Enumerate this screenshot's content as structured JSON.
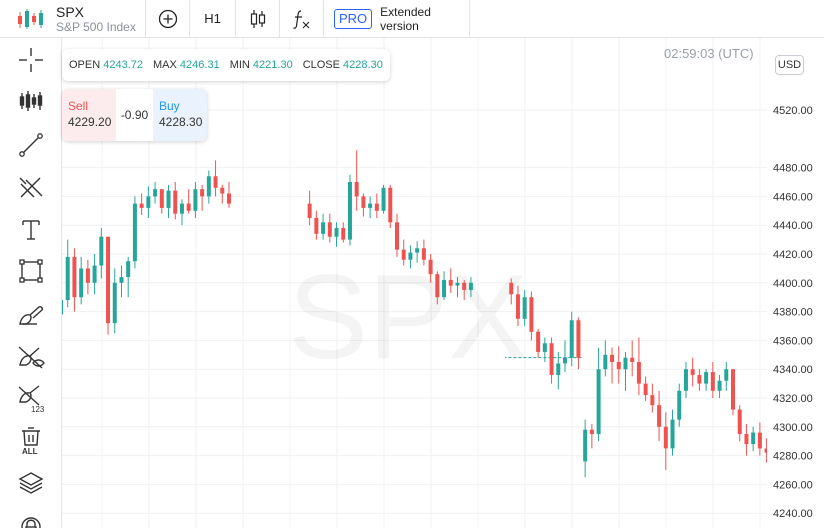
{
  "header": {
    "symbol": "SPX",
    "description": "S&P 500 Index",
    "interval": "H1",
    "pro_badge": "PRO",
    "extended_label": "Extended version"
  },
  "icons": {
    "logo": "candles-logo-icon",
    "add": "plus-circle-icon",
    "chart_type": "candlestick-icon",
    "indicators": "fx-icon"
  },
  "left_toolbar": [
    "crosshair-icon",
    "candles-settings-icon",
    "trend-line-icon",
    "fork-lines-icon",
    "text-icon",
    "rectangle-icon",
    "brush-icon",
    "hide-drawings-icon",
    "hide-123-icon",
    "delete-all-icon",
    "layers-icon",
    "lock-icon"
  ],
  "left_toolbar_labels": {
    "delete_all": "ALL",
    "hide_123": "123"
  },
  "ohlc": {
    "open_label": "OPEN",
    "open": "4243.72",
    "max_label": "MAX",
    "max": "4246.31",
    "min_label": "MIN",
    "min": "4221.30",
    "close_label": "CLOSE",
    "close": "4228.30"
  },
  "trade": {
    "sell_label": "Sell",
    "sell": "4229.20",
    "spread": "-0.90",
    "buy_label": "Buy",
    "buy": "4228.30"
  },
  "clock": "02:59:03 (UTC)",
  "currency": "USD",
  "watermark": "SPX",
  "colors": {
    "up": "#26a69a",
    "down": "#ef5350",
    "grid": "#eef0f3"
  },
  "chart_data": {
    "type": "candlestick",
    "title": "",
    "y_ticks": [
      4520,
      4480,
      4460,
      4440,
      4420,
      4400,
      4380,
      4360,
      4340,
      4320,
      4300,
      4280,
      4260,
      4240
    ],
    "ylim": [
      4232,
      4550
    ],
    "grid": true,
    "last_price_line": 4348,
    "gap_slots": [
      26,
      27,
      28,
      29,
      30,
      31,
      32,
      33,
      34,
      35,
      36
    ],
    "candles": [
      [
        4378,
        4395,
        4374,
        4388
      ],
      [
        4388,
        4430,
        4383,
        4418
      ],
      [
        4418,
        4424,
        4380,
        4390
      ],
      [
        4390,
        4418,
        4385,
        4410
      ],
      [
        4410,
        4416,
        4392,
        4400
      ],
      [
        4400,
        4420,
        4392,
        4412
      ],
      [
        4412,
        4438,
        4403,
        4432
      ],
      [
        4432,
        4432,
        4364,
        4372
      ],
      [
        4372,
        4410,
        4365,
        4400
      ],
      [
        4400,
        4412,
        4390,
        4404
      ],
      [
        4404,
        4418,
        4390,
        4415
      ],
      [
        4415,
        4460,
        4410,
        4455
      ],
      [
        4455,
        4462,
        4447,
        4452
      ],
      [
        4452,
        4467,
        4445,
        4460
      ],
      [
        4460,
        4470,
        4455,
        4465
      ],
      [
        4465,
        4465,
        4448,
        4452
      ],
      [
        4452,
        4468,
        4445,
        4464
      ],
      [
        4464,
        4470,
        4444,
        4448
      ],
      [
        4448,
        4458,
        4440,
        4455
      ],
      [
        4455,
        4465,
        4448,
        4450
      ],
      [
        4450,
        4470,
        4445,
        4465
      ],
      [
        4465,
        4468,
        4450,
        4460
      ],
      [
        4460,
        4478,
        4455,
        4474
      ],
      [
        4474,
        4485,
        4460,
        4466
      ],
      [
        4466,
        4468,
        4455,
        4462
      ],
      [
        4462,
        4470,
        4452,
        4455
      ],
      [
        4455,
        4464,
        4440,
        4445
      ],
      [
        4445,
        4450,
        4430,
        4434
      ],
      [
        4434,
        4448,
        4430,
        4442
      ],
      [
        4442,
        4448,
        4428,
        4432
      ],
      [
        4432,
        4442,
        4425,
        4438
      ],
      [
        4438,
        4442,
        4428,
        4430
      ],
      [
        4430,
        4475,
        4426,
        4470
      ],
      [
        4470,
        4492,
        4450,
        4460
      ],
      [
        4460,
        4462,
        4446,
        4452
      ],
      [
        4452,
        4460,
        4445,
        4455
      ],
      [
        4455,
        4462,
        4445,
        4450
      ],
      [
        4450,
        4468,
        4448,
        4466
      ],
      [
        4466,
        4468,
        4438,
        4442
      ],
      [
        4442,
        4448,
        4418,
        4423
      ],
      [
        4423,
        4430,
        4412,
        4416
      ],
      [
        4416,
        4426,
        4410,
        4421
      ],
      [
        4421,
        4429,
        4414,
        4424
      ],
      [
        4424,
        4430,
        4412,
        4416
      ],
      [
        4416,
        4420,
        4400,
        4406
      ],
      [
        4406,
        4408,
        4385,
        4390
      ],
      [
        4390,
        4408,
        4388,
        4402
      ],
      [
        4402,
        4410,
        4393,
        4398
      ],
      [
        4398,
        4404,
        4390,
        4400
      ],
      [
        4400,
        4402,
        4388,
        4395
      ],
      [
        4395,
        4404,
        4390,
        4400
      ],
      [
        4400,
        4403,
        4385,
        4392
      ],
      [
        4392,
        4398,
        4370,
        4375
      ],
      [
        4375,
        4395,
        4370,
        4390
      ],
      [
        4390,
        4394,
        4360,
        4366
      ],
      [
        4366,
        4368,
        4348,
        4352
      ],
      [
        4352,
        4362,
        4345,
        4358
      ],
      [
        4358,
        4362,
        4330,
        4336
      ],
      [
        4336,
        4352,
        4326,
        4344
      ],
      [
        4344,
        4360,
        4338,
        4348
      ],
      [
        4348,
        4380,
        4342,
        4374
      ],
      [
        4374,
        4376,
        4340,
        4348
      ],
      [
        4276,
        4305,
        4265,
        4298
      ],
      [
        4298,
        4302,
        4285,
        4295
      ],
      [
        4295,
        4355,
        4290,
        4340
      ],
      [
        4340,
        4360,
        4335,
        4350
      ],
      [
        4350,
        4355,
        4330,
        4345
      ],
      [
        4345,
        4356,
        4330,
        4340
      ],
      [
        4340,
        4352,
        4325,
        4348
      ],
      [
        4348,
        4360,
        4335,
        4345
      ],
      [
        4345,
        4362,
        4322,
        4330
      ],
      [
        4330,
        4335,
        4318,
        4322
      ],
      [
        4322,
        4330,
        4310,
        4315
      ],
      [
        4315,
        4325,
        4290,
        4300
      ],
      [
        4300,
        4310,
        4270,
        4285
      ],
      [
        4285,
        4312,
        4280,
        4305
      ],
      [
        4305,
        4330,
        4300,
        4325
      ],
      [
        4325,
        4345,
        4320,
        4340
      ],
      [
        4340,
        4348,
        4328,
        4336
      ],
      [
        4336,
        4340,
        4325,
        4330
      ],
      [
        4330,
        4340,
        4325,
        4338
      ],
      [
        4338,
        4345,
        4320,
        4325
      ],
      [
        4325,
        4336,
        4320,
        4332
      ],
      [
        4332,
        4345,
        4325,
        4340
      ],
      [
        4340,
        4340,
        4308,
        4312
      ],
      [
        4312,
        4315,
        4290,
        4295
      ],
      [
        4295,
        4302,
        4280,
        4288
      ],
      [
        4288,
        4300,
        4283,
        4296
      ],
      [
        4296,
        4303,
        4280,
        4285
      ],
      [
        4285,
        4292,
        4275,
        4282
      ],
      [
        4282,
        4290,
        4262,
        4266
      ],
      [
        4266,
        4272,
        4245,
        4250
      ],
      [
        4250,
        4255,
        4225,
        4232
      ]
    ]
  }
}
